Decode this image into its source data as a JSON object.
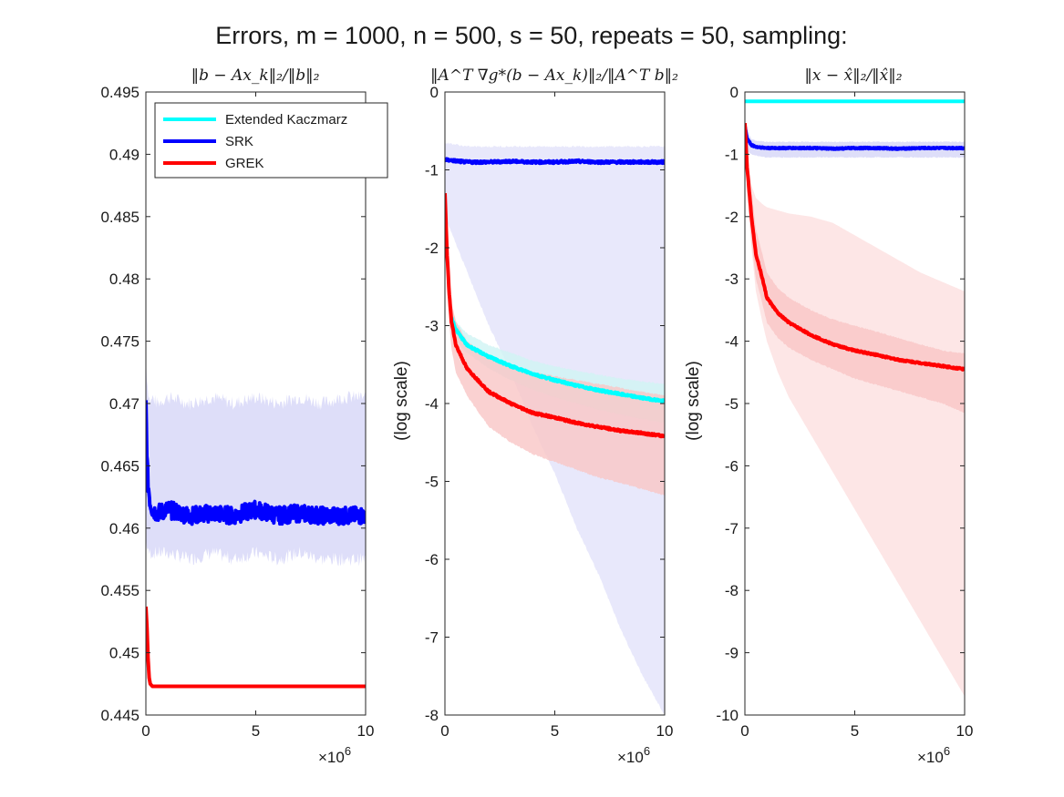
{
  "figure": {
    "title": "Errors, m = 1000, n = 500, s = 50, repeats = 50, sampling:",
    "x_exponent_label": "×10",
    "x_exponent_power": "6",
    "colors": {
      "Extended Kaczmarz": "#00ffff",
      "SRK": "#0000ff",
      "GREK": "#ff0000",
      "band_blue": "#d6d6f8",
      "band_cyan": "#d0f4f4",
      "band_red": "#f9c6c6",
      "band_red_light": "#fde6e6"
    }
  },
  "legend": {
    "entries": [
      "Extended Kaczmarz",
      "SRK",
      "GREK"
    ],
    "placement": "top-left of first panel"
  },
  "chart_data": [
    {
      "type": "line",
      "title": "‖b − Ax_k‖₂/‖b‖₂",
      "ylabel": "",
      "xlim": [
        0,
        10
      ],
      "ylim": [
        0.445,
        0.495
      ],
      "xticks": [
        "0",
        "5",
        "10"
      ],
      "yticks": [
        "0.445",
        "0.45",
        "0.455",
        "0.46",
        "0.465",
        "0.47",
        "0.475",
        "0.48",
        "0.485",
        "0.49",
        "0.495"
      ],
      "series": [
        {
          "name": "SRK",
          "x": [
            0,
            0.05,
            0.1,
            0.2,
            0.3,
            0.5,
            1,
            2,
            3,
            4,
            5,
            6,
            7,
            8,
            9,
            10
          ],
          "y": [
            0.47,
            0.4655,
            0.4635,
            0.462,
            0.4615,
            0.4612,
            0.4615,
            0.461,
            0.4612,
            0.461,
            0.4615,
            0.461,
            0.4612,
            0.461,
            0.461,
            0.461
          ],
          "band_lower": [
            0.4595,
            0.4585,
            0.458,
            0.458,
            0.458,
            0.458,
            0.458,
            0.4575,
            0.458,
            0.4575,
            0.458,
            0.4575,
            0.458,
            0.4575,
            0.4575,
            0.4575
          ],
          "band_upper": [
            0.474,
            0.472,
            0.471,
            0.47,
            0.4705,
            0.47,
            0.4705,
            0.47,
            0.4705,
            0.47,
            0.4705,
            0.47,
            0.4705,
            0.47,
            0.4705,
            0.4705
          ],
          "noise": 0.0007
        },
        {
          "name": "GREK",
          "x": [
            0,
            0.05,
            0.1,
            0.15,
            0.2,
            0.3,
            0.5,
            1,
            10
          ],
          "y": [
            0.4537,
            0.452,
            0.4495,
            0.448,
            0.4475,
            0.4473,
            0.4473,
            0.4473,
            0.4473
          ]
        }
      ]
    },
    {
      "type": "line",
      "title": "‖A^T ∇g*(b − Ax_k)‖₂/‖A^T b‖₂",
      "ylabel": "(log scale)",
      "xlim": [
        0,
        10
      ],
      "ylim": [
        -8,
        0
      ],
      "xticks": [
        "0",
        "5",
        "10"
      ],
      "yticks": [
        "-8",
        "-7",
        "-6",
        "-5",
        "-4",
        "-3",
        "-2",
        "-1",
        "0"
      ],
      "series": [
        {
          "name": "SRK",
          "x": [
            0,
            1,
            2,
            3,
            4,
            5,
            6,
            7,
            8,
            9,
            10
          ],
          "y": [
            -0.87,
            -0.9,
            -0.9,
            -0.89,
            -0.9,
            -0.9,
            -0.89,
            -0.9,
            -0.9,
            -0.9,
            -0.9
          ],
          "band_lower": [
            -1.6,
            -2.3,
            -3.0,
            -3.6,
            -4.3,
            -4.9,
            -5.6,
            -6.2,
            -6.9,
            -7.5,
            -8.0
          ],
          "band_upper": [
            -0.65,
            -0.7,
            -0.7,
            -0.7,
            -0.7,
            -0.7,
            -0.7,
            -0.7,
            -0.7,
            -0.7,
            -0.7
          ],
          "noise": 0.015
        },
        {
          "name": "Extended Kaczmarz",
          "x": [
            0.3,
            0.5,
            1,
            2,
            3,
            4,
            5,
            6,
            7,
            8,
            9,
            10
          ],
          "y": [
            -2.9,
            -3.05,
            -3.25,
            -3.4,
            -3.52,
            -3.62,
            -3.7,
            -3.77,
            -3.83,
            -3.88,
            -3.93,
            -3.97
          ],
          "band_lower": [
            -3.1,
            -3.2,
            -3.35,
            -3.55,
            -3.7,
            -3.82,
            -3.92,
            -4.0,
            -4.08,
            -4.14,
            -4.2,
            -4.25
          ],
          "band_upper": [
            -2.8,
            -2.95,
            -3.1,
            -3.25,
            -3.35,
            -3.45,
            -3.52,
            -3.58,
            -3.63,
            -3.68,
            -3.72,
            -3.75
          ],
          "noise": 0.012
        },
        {
          "name": "GREK",
          "x": [
            0,
            0.1,
            0.2,
            0.3,
            0.5,
            1,
            2,
            3,
            4,
            5,
            6,
            7,
            8,
            9,
            10
          ],
          "y": [
            -1.3,
            -2.1,
            -2.6,
            -2.95,
            -3.25,
            -3.55,
            -3.85,
            -4.0,
            -4.12,
            -4.18,
            -4.25,
            -4.3,
            -4.35,
            -4.38,
            -4.42
          ],
          "band_lower": [
            -1.6,
            -2.5,
            -3.0,
            -3.3,
            -3.6,
            -3.9,
            -4.3,
            -4.5,
            -4.65,
            -4.75,
            -4.85,
            -4.95,
            -5.02,
            -5.1,
            -5.18
          ],
          "band_upper": [
            -1.1,
            -1.9,
            -2.4,
            -2.7,
            -2.95,
            -3.2,
            -3.4,
            -3.5,
            -3.6,
            -3.65,
            -3.7,
            -3.75,
            -3.8,
            -3.85,
            -3.9
          ],
          "noise": 0.012
        }
      ]
    },
    {
      "type": "line",
      "title": "‖x − x̂‖₂/‖x̂‖₂",
      "ylabel": "(log scale)",
      "xlim": [
        0,
        10
      ],
      "ylim": [
        -10,
        0
      ],
      "xticks": [
        "0",
        "5",
        "10"
      ],
      "yticks": [
        "-10",
        "-9",
        "-8",
        "-7",
        "-6",
        "-5",
        "-4",
        "-3",
        "-2",
        "-1",
        "0"
      ],
      "series": [
        {
          "name": "Extended Kaczmarz",
          "x": [
            0,
            10
          ],
          "y": [
            -0.15,
            -0.15
          ]
        },
        {
          "name": "SRK",
          "x": [
            0,
            0.1,
            0.3,
            0.5,
            1,
            2,
            3,
            4,
            5,
            6,
            7,
            8,
            9,
            10
          ],
          "y": [
            -0.55,
            -0.75,
            -0.85,
            -0.88,
            -0.9,
            -0.9,
            -0.9,
            -0.91,
            -0.9,
            -0.9,
            -0.91,
            -0.9,
            -0.9,
            -0.9
          ],
          "band_lower": [
            -0.75,
            -0.95,
            -1.0,
            -1.02,
            -1.05,
            -1.05,
            -1.05,
            -1.05,
            -1.05,
            -1.05,
            -1.05,
            -1.05,
            -1.05,
            -1.05
          ],
          "band_upper": [
            -0.45,
            -0.65,
            -0.75,
            -0.78,
            -0.8,
            -0.8,
            -0.8,
            -0.8,
            -0.8,
            -0.8,
            -0.8,
            -0.8,
            -0.8,
            -0.8
          ],
          "noise": 0.01
        },
        {
          "name": "GREK",
          "x": [
            0,
            0.1,
            0.2,
            0.3,
            0.5,
            0.8,
            1,
            1.5,
            2,
            3,
            4,
            5,
            6,
            7,
            8,
            9,
            10
          ],
          "y": [
            -0.5,
            -1.2,
            -1.6,
            -2.0,
            -2.6,
            -3.0,
            -3.3,
            -3.55,
            -3.7,
            -3.9,
            -4.05,
            -4.15,
            -4.22,
            -4.3,
            -4.35,
            -4.4,
            -4.45
          ],
          "band_lower": [
            -0.7,
            -1.5,
            -2.0,
            -2.4,
            -3.0,
            -3.4,
            -3.7,
            -3.95,
            -4.1,
            -4.3,
            -4.45,
            -4.6,
            -4.7,
            -4.8,
            -4.9,
            -5.0,
            -5.15
          ],
          "band_upper": [
            -0.4,
            -1.0,
            -1.3,
            -1.6,
            -2.2,
            -2.6,
            -2.9,
            -3.15,
            -3.3,
            -3.5,
            -3.65,
            -3.75,
            -3.85,
            -3.95,
            -4.05,
            -4.15,
            -4.2
          ],
          "outer_lower": [
            -0.7,
            -1.6,
            -2.1,
            -2.5,
            -3.2,
            -3.7,
            -4.0,
            -4.5,
            -4.9,
            -5.5,
            -6.1,
            -6.7,
            -7.3,
            -7.9,
            -8.5,
            -9.1,
            -9.7
          ],
          "outer_upper": [
            -0.4,
            -1.0,
            -1.3,
            -1.5,
            -1.7,
            -1.8,
            -1.85,
            -1.9,
            -1.95,
            -2.0,
            -2.1,
            -2.3,
            -2.5,
            -2.7,
            -2.9,
            -3.05,
            -3.2
          ],
          "noise": 0.012
        }
      ]
    }
  ]
}
